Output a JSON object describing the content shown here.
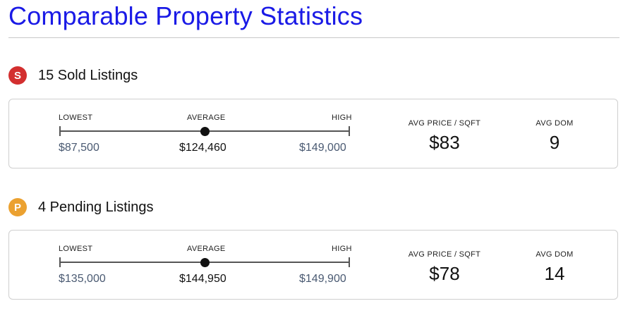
{
  "page_title": "Comparable Property Statistics",
  "sections": [
    {
      "badge_letter": "S",
      "badge_color": "#d32f2f",
      "label": "15 Sold Listings",
      "range": {
        "lowest_label": "LOWEST",
        "average_label": "AVERAGE",
        "high_label": "HIGH",
        "lowest": "$87,500",
        "average": "$124,460",
        "high": "$149,000"
      },
      "avg_price_sqft_label": "AVG PRICE / SQFT",
      "avg_price_sqft": "$83",
      "avg_dom_label": "AVG DOM",
      "avg_dom": "9"
    },
    {
      "badge_letter": "P",
      "badge_color": "#eba130",
      "label": "4 Pending Listings",
      "range": {
        "lowest_label": "LOWEST",
        "average_label": "AVERAGE",
        "high_label": "HIGH",
        "lowest": "$135,000",
        "average": "$144,950",
        "high": "$149,900"
      },
      "avg_price_sqft_label": "AVG PRICE / SQFT",
      "avg_price_sqft": "$78",
      "avg_dom_label": "AVG DOM",
      "avg_dom": "14"
    }
  ]
}
